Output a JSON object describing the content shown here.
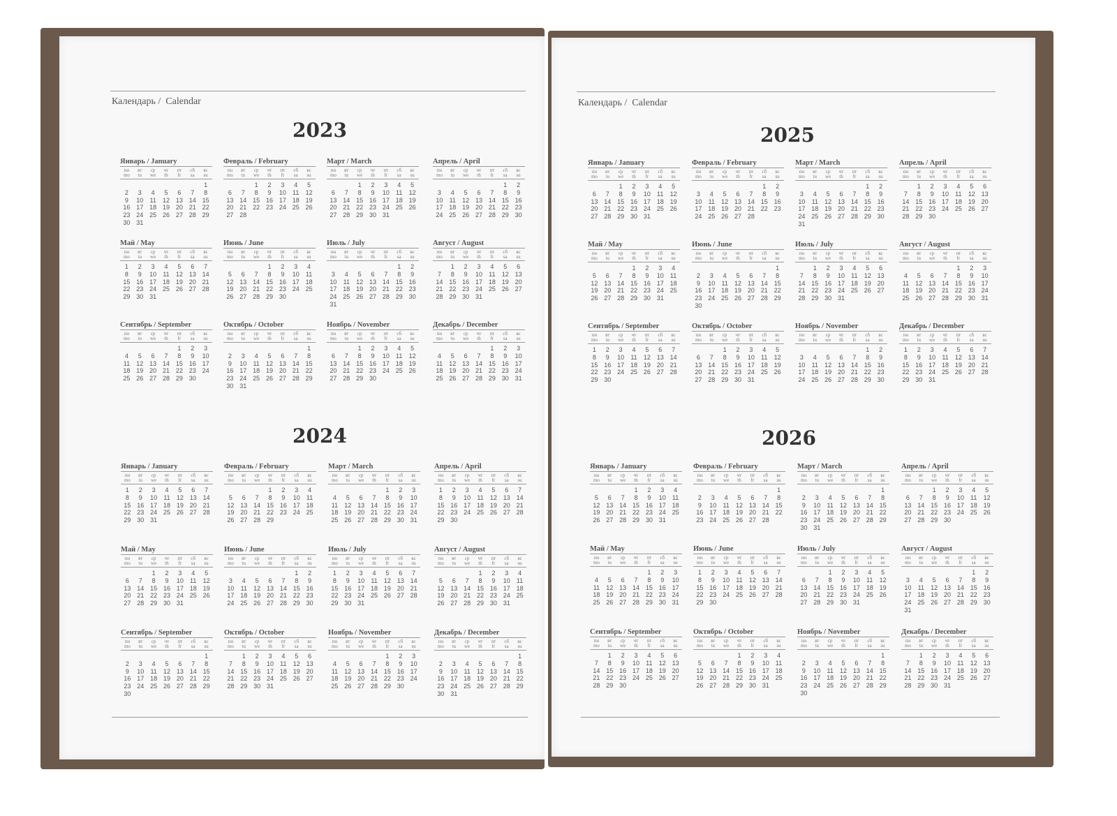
{
  "header": {
    "ru": "Календарь /",
    "en": "Calendar"
  },
  "weekdays": [
    [
      "пн",
      "mo"
    ],
    [
      "вт",
      "tu"
    ],
    [
      "ср",
      "we"
    ],
    [
      "чт",
      "th"
    ],
    [
      "пт",
      "fr"
    ],
    [
      "сб",
      "sa"
    ],
    [
      "вс",
      "su"
    ]
  ],
  "month_names": [
    "Январь / January",
    "Февраль / February",
    "Март / March",
    "Апрель / April",
    "Май / May",
    "Июнь / June",
    "Июль / July",
    "Август / August",
    "Сентябрь / September",
    "Октябрь / October",
    "Ноябрь / November",
    "Декабрь / December"
  ],
  "years": [
    {
      "year": "2023",
      "first_weekday": [
        6,
        2,
        2,
        5,
        0,
        3,
        5,
        1,
        4,
        6,
        2,
        4
      ],
      "days": [
        31,
        28,
        31,
        30,
        31,
        30,
        31,
        31,
        30,
        31,
        30,
        31
      ]
    },
    {
      "year": "2024",
      "first_weekday": [
        0,
        3,
        4,
        0,
        2,
        5,
        0,
        3,
        6,
        1,
        4,
        6
      ],
      "days": [
        31,
        29,
        31,
        30,
        31,
        30,
        31,
        31,
        30,
        31,
        30,
        31
      ]
    },
    {
      "year": "2025",
      "first_weekday": [
        2,
        5,
        5,
        1,
        3,
        6,
        1,
        4,
        0,
        2,
        5,
        0
      ],
      "days": [
        31,
        28,
        31,
        30,
        31,
        30,
        31,
        31,
        30,
        31,
        30,
        31
      ]
    },
    {
      "year": "2026",
      "first_weekday": [
        3,
        6,
        6,
        2,
        4,
        0,
        2,
        5,
        1,
        3,
        6,
        1
      ],
      "days": [
        31,
        28,
        31,
        30,
        31,
        30,
        31,
        31,
        30,
        31,
        30,
        31
      ]
    }
  ]
}
